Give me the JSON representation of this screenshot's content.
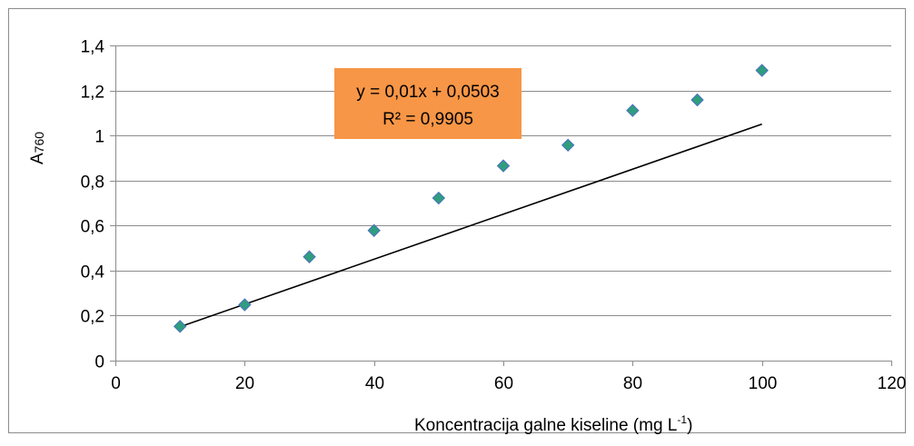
{
  "chart_data": {
    "type": "scatter",
    "x": [
      10,
      20,
      30,
      40,
      50,
      60,
      70,
      80,
      90,
      100
    ],
    "y": [
      0.152,
      0.248,
      0.461,
      0.578,
      0.722,
      0.865,
      0.957,
      1.111,
      1.158,
      1.289
    ],
    "xlabel": "Koncentracija galne kiseline (mg L",
    "xlabel_sup": "-1",
    "xlabel_end": ")",
    "ylabel": "A760",
    "ylabel_main": "A",
    "ylabel_sub": "760",
    "xlim": [
      0,
      120
    ],
    "ylim": [
      0,
      1.4
    ],
    "xticks": [
      "0",
      "20",
      "40",
      "60",
      "80",
      "100",
      "120"
    ],
    "yticks": [
      "0",
      "0,2",
      "0,4",
      "0,6",
      "0,8",
      "1",
      "1,2",
      "1,4"
    ],
    "grid": true,
    "trendline": {
      "type": "linear",
      "slope": 0.01,
      "intercept": 0.0503,
      "x_range": [
        10,
        100
      ],
      "equation": "y = 0,01x + 0,0503",
      "r_squared": "R² = 0,9905"
    },
    "marker_color": "#2e9e7e",
    "marker_edge_color": "#4b6fbf",
    "label_box_color": "#f79646",
    "gridline_color": "#8c8c8c",
    "trendline_color": "#000000"
  }
}
